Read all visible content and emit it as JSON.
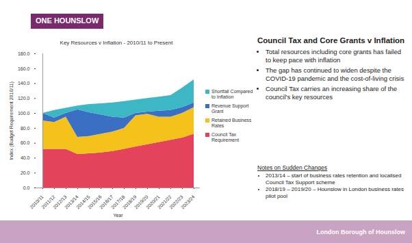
{
  "chart_data": {
    "type": "area",
    "title": "Key Resources v Inflation - 2010/11 to Present",
    "x_label": "Year",
    "y_label": "Index (Budget Requirement 2010/11)",
    "categories": [
      "2010/11",
      "2011/12",
      "2012/13",
      "2013/14",
      "2014/15",
      "2015/16",
      "2016/17",
      "2017/18",
      "2018/19",
      "2019/20",
      "2020/21",
      "2021/22",
      "2022/23",
      "2023/24"
    ],
    "series": [
      {
        "name": "Council Tax Requirement",
        "color": "#e5425c",
        "values": [
          52,
          52,
          52,
          45,
          46,
          47,
          49,
          52,
          55,
          58,
          61,
          64,
          67,
          72
        ]
      },
      {
        "name": "Retained Business Rates",
        "color": "#f4c21b",
        "values": [
          38,
          36,
          43,
          23,
          23,
          25,
          26,
          28,
          42,
          41,
          34,
          31,
          33,
          36
        ]
      },
      {
        "name": "Revenue Support Grant",
        "color": "#3a6fc4",
        "values": [
          10,
          6,
          5,
          37,
          32,
          26,
          20,
          14,
          3,
          3,
          8,
          9,
          8,
          6
        ]
      },
      {
        "name": "Shortfall Compared to Inflation",
        "color": "#3cb7c3",
        "values": [
          0,
          10,
          7,
          5,
          11,
          15,
          19,
          22,
          18,
          18,
          19,
          20,
          26,
          31
        ]
      }
    ],
    "stacked": true,
    "ylim": [
      0,
      180
    ],
    "yticks": [
      {
        "value": 0,
        "label": "0.0"
      },
      {
        "value": 20,
        "label": "20.0"
      },
      {
        "value": 40,
        "label": "40.0"
      },
      {
        "value": 60,
        "label": "60.0"
      },
      {
        "value": 80,
        "label": "80.0"
      },
      {
        "value": 100,
        "label": "100.0"
      },
      {
        "value": 120,
        "label": "120.0"
      },
      {
        "value": 140,
        "label": "140.0"
      },
      {
        "value": 160,
        "label": "160.0"
      },
      {
        "value": 180,
        "label": "180.0"
      }
    ],
    "grid": false,
    "legend": "right"
  },
  "slide": {
    "logo": "ONE HOUNSLOW",
    "heading": "Council Tax and Core Grants v Inflation",
    "bullets": [
      "Total resources including core grants has failed to keep pace with inflation",
      "The gap has continued to widen despite the COVID-19 pandemic and the cost-of-living crisis",
      "Council Tax carries an increasing share of the council's key resources"
    ],
    "notes_title": "Notes on Sudden Changes",
    "notes": [
      "2013/14 – start of business rates retention and localised Council Tax Support scheme",
      "2018/19 – 2019/20 – Hounslow in London business rates pilot pool"
    ],
    "footer": "London Borough of Hounslow"
  }
}
